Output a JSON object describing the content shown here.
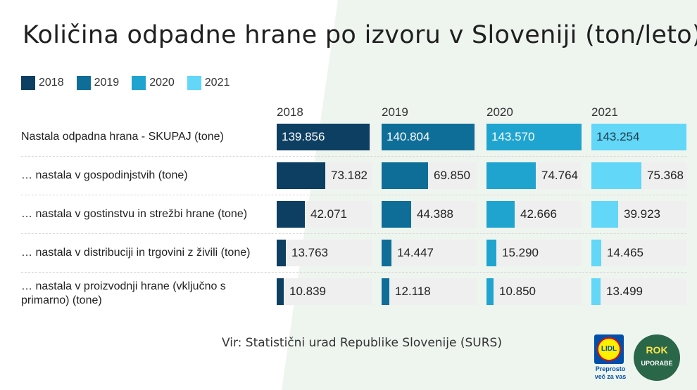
{
  "title": "Količina odpadne hrane po izvoru v Sloveniji (ton/leto)",
  "source": "Vir: Statistični urad Republike Slovenije (SURS)",
  "logos": {
    "lidl": {
      "text": "LIDL",
      "tagline_1": "Preprosto",
      "tagline_2": "več za vas"
    },
    "rok": {
      "text_top": "ROK",
      "text_bottom": "UPORABE"
    }
  },
  "colors": {
    "2018": "#0d3f63",
    "2019": "#0f6e98",
    "2020": "#1fa4cf",
    "2021": "#62d7f7",
    "cell_bg": "#efefef"
  },
  "chart_data": {
    "type": "bar",
    "title": "Količina odpadne hrane po izvoru v Sloveniji (ton/leto)",
    "legend": "top-left",
    "series_names": [
      "2018",
      "2019",
      "2020",
      "2021"
    ],
    "categories": [
      "Nastala odpadna hrana - SKUPAJ (tone)",
      "… nastala v gospodinjstvih (tone)",
      "… nastala v gostinstvu in strežbi hrane (tone)",
      "… nastala v distribuciji in trgovini z živili (tone)",
      "… nastala v proizvodnji hrane (vključno s primarno) (tone)"
    ],
    "max": 143570,
    "series": [
      {
        "name": "2018",
        "values": [
          139856,
          73182,
          42071,
          13763,
          10839
        ],
        "labels": [
          "139.856",
          "73.182",
          "42.071",
          "13.763",
          "10.839"
        ]
      },
      {
        "name": "2019",
        "values": [
          140804,
          69850,
          44388,
          14447,
          12118
        ],
        "labels": [
          "140.804",
          "69.850",
          "44.388",
          "14.447",
          "12.118"
        ]
      },
      {
        "name": "2020",
        "values": [
          143570,
          74764,
          42666,
          15290,
          10850
        ],
        "labels": [
          "143.570",
          "74.764",
          "42.666",
          "15.290",
          "10.850"
        ]
      },
      {
        "name": "2021",
        "values": [
          143254,
          75368,
          39923,
          14465,
          13499
        ],
        "labels": [
          "143.254",
          "75.368",
          "39.923",
          "14.465",
          "13.499"
        ]
      }
    ]
  }
}
